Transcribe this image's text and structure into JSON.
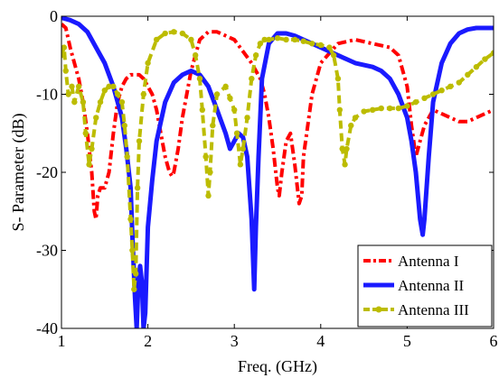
{
  "chart_data": {
    "type": "line",
    "title": "",
    "xlabel": "Freq. (GHz)",
    "ylabel": "S- Parameter (dB)",
    "xlim": [
      1,
      6
    ],
    "ylim": [
      -40,
      0
    ],
    "xticks": [
      1,
      2,
      3,
      4,
      5,
      6
    ],
    "yticks": [
      0,
      -10,
      -20,
      -30,
      -40
    ],
    "xtick_labels": [
      "1",
      "2",
      "3",
      "4",
      "5",
      "6"
    ],
    "ytick_labels": [
      "0",
      "-10",
      "-20",
      "-30",
      "-40"
    ],
    "grid": false,
    "legend_position": "bottom-right",
    "series": [
      {
        "name": "Antenna I",
        "color": "#ff0000",
        "style": "dash-dot",
        "points": [
          [
            1.0,
            -1
          ],
          [
            1.05,
            -1.5
          ],
          [
            1.1,
            -4
          ],
          [
            1.15,
            -6
          ],
          [
            1.2,
            -8
          ],
          [
            1.25,
            -11
          ],
          [
            1.3,
            -15
          ],
          [
            1.35,
            -20
          ],
          [
            1.38,
            -25
          ],
          [
            1.4,
            -26
          ],
          [
            1.42,
            -23
          ],
          [
            1.45,
            -22
          ],
          [
            1.5,
            -22
          ],
          [
            1.55,
            -20
          ],
          [
            1.6,
            -15
          ],
          [
            1.65,
            -11
          ],
          [
            1.7,
            -9
          ],
          [
            1.75,
            -8
          ],
          [
            1.8,
            -7.5
          ],
          [
            1.85,
            -7.5
          ],
          [
            1.9,
            -7.5
          ],
          [
            1.95,
            -8
          ],
          [
            2.0,
            -9
          ],
          [
            2.05,
            -10
          ],
          [
            2.1,
            -12
          ],
          [
            2.15,
            -15
          ],
          [
            2.2,
            -18
          ],
          [
            2.25,
            -20
          ],
          [
            2.28,
            -20.5
          ],
          [
            2.3,
            -20
          ],
          [
            2.35,
            -17
          ],
          [
            2.4,
            -13
          ],
          [
            2.5,
            -7
          ],
          [
            2.6,
            -3
          ],
          [
            2.7,
            -2
          ],
          [
            2.8,
            -2
          ],
          [
            2.9,
            -2.5
          ],
          [
            3.0,
            -3
          ],
          [
            3.1,
            -4.5
          ],
          [
            3.2,
            -6
          ],
          [
            3.3,
            -8
          ],
          [
            3.35,
            -10
          ],
          [
            3.4,
            -13
          ],
          [
            3.45,
            -17
          ],
          [
            3.5,
            -22
          ],
          [
            3.52,
            -23
          ],
          [
            3.55,
            -20
          ],
          [
            3.6,
            -16
          ],
          [
            3.65,
            -15
          ],
          [
            3.7,
            -19
          ],
          [
            3.75,
            -24
          ],
          [
            3.78,
            -23
          ],
          [
            3.8,
            -18
          ],
          [
            3.9,
            -10
          ],
          [
            4.0,
            -6
          ],
          [
            4.2,
            -3.5
          ],
          [
            4.4,
            -3
          ],
          [
            4.6,
            -3.5
          ],
          [
            4.8,
            -4
          ],
          [
            4.9,
            -5
          ],
          [
            5.0,
            -9
          ],
          [
            5.05,
            -14
          ],
          [
            5.1,
            -18
          ],
          [
            5.15,
            -16
          ],
          [
            5.2,
            -14
          ],
          [
            5.3,
            -12
          ],
          [
            5.4,
            -12.5
          ],
          [
            5.5,
            -13
          ],
          [
            5.6,
            -13.5
          ],
          [
            5.7,
            -13.5
          ],
          [
            5.8,
            -13
          ],
          [
            5.9,
            -12.5
          ],
          [
            6.0,
            -12
          ]
        ]
      },
      {
        "name": "Antenna II",
        "color": "#1a1aff",
        "style": "solid",
        "points": [
          [
            1.0,
            -0.2
          ],
          [
            1.1,
            -0.5
          ],
          [
            1.2,
            -1
          ],
          [
            1.3,
            -2
          ],
          [
            1.4,
            -4
          ],
          [
            1.5,
            -6
          ],
          [
            1.6,
            -9
          ],
          [
            1.7,
            -13
          ],
          [
            1.75,
            -17
          ],
          [
            1.8,
            -22
          ],
          [
            1.82,
            -28
          ],
          [
            1.85,
            -36
          ],
          [
            1.87,
            -40
          ],
          [
            1.89,
            -34
          ],
          [
            1.91,
            -32
          ],
          [
            1.93,
            -34
          ],
          [
            1.95,
            -40
          ],
          [
            1.97,
            -38
          ],
          [
            2.0,
            -27
          ],
          [
            2.05,
            -21
          ],
          [
            2.1,
            -16
          ],
          [
            2.2,
            -11
          ],
          [
            2.3,
            -8.5
          ],
          [
            2.4,
            -7.5
          ],
          [
            2.5,
            -7
          ],
          [
            2.6,
            -7.5
          ],
          [
            2.7,
            -9
          ],
          [
            2.8,
            -12
          ],
          [
            2.9,
            -15
          ],
          [
            2.95,
            -17
          ],
          [
            3.0,
            -16
          ],
          [
            3.05,
            -15
          ],
          [
            3.1,
            -15.5
          ],
          [
            3.15,
            -18
          ],
          [
            3.2,
            -26
          ],
          [
            3.23,
            -35
          ],
          [
            3.25,
            -27
          ],
          [
            3.28,
            -18
          ],
          [
            3.32,
            -8
          ],
          [
            3.4,
            -3.5
          ],
          [
            3.5,
            -2.2
          ],
          [
            3.6,
            -2.2
          ],
          [
            3.7,
            -2.5
          ],
          [
            3.8,
            -3
          ],
          [
            4.0,
            -4
          ],
          [
            4.2,
            -5
          ],
          [
            4.4,
            -6
          ],
          [
            4.6,
            -6.5
          ],
          [
            4.7,
            -7
          ],
          [
            4.8,
            -8
          ],
          [
            4.9,
            -10
          ],
          [
            5.0,
            -13
          ],
          [
            5.05,
            -16
          ],
          [
            5.1,
            -20
          ],
          [
            5.15,
            -26
          ],
          [
            5.18,
            -28
          ],
          [
            5.2,
            -26
          ],
          [
            5.25,
            -18
          ],
          [
            5.3,
            -11
          ],
          [
            5.4,
            -6
          ],
          [
            5.5,
            -3.5
          ],
          [
            5.6,
            -2.2
          ],
          [
            5.7,
            -1.7
          ],
          [
            5.8,
            -1.5
          ],
          [
            5.9,
            -1.5
          ],
          [
            6.0,
            -1.5
          ]
        ]
      },
      {
        "name": "Antenna III",
        "color": "#bcbc00",
        "style": "dashed-dot-marker",
        "points": [
          [
            1.0,
            -5
          ],
          [
            1.03,
            -4
          ],
          [
            1.05,
            -7
          ],
          [
            1.08,
            -10
          ],
          [
            1.12,
            -9
          ],
          [
            1.15,
            -11
          ],
          [
            1.2,
            -9
          ],
          [
            1.25,
            -11
          ],
          [
            1.28,
            -15
          ],
          [
            1.32,
            -19
          ],
          [
            1.35,
            -17
          ],
          [
            1.4,
            -13
          ],
          [
            1.45,
            -11
          ],
          [
            1.5,
            -9.5
          ],
          [
            1.55,
            -9
          ],
          [
            1.6,
            -9
          ],
          [
            1.65,
            -10
          ],
          [
            1.7,
            -11
          ],
          [
            1.73,
            -14
          ],
          [
            1.76,
            -18
          ],
          [
            1.8,
            -26
          ],
          [
            1.82,
            -30
          ],
          [
            1.84,
            -35
          ],
          [
            1.86,
            -33
          ],
          [
            1.88,
            -22
          ],
          [
            1.9,
            -16
          ],
          [
            1.95,
            -10
          ],
          [
            2.0,
            -6
          ],
          [
            2.1,
            -3
          ],
          [
            2.2,
            -2.2
          ],
          [
            2.3,
            -2
          ],
          [
            2.4,
            -2.2
          ],
          [
            2.5,
            -3
          ],
          [
            2.55,
            -5
          ],
          [
            2.6,
            -8
          ],
          [
            2.63,
            -12
          ],
          [
            2.67,
            -18
          ],
          [
            2.7,
            -23
          ],
          [
            2.72,
            -20
          ],
          [
            2.75,
            -14
          ],
          [
            2.8,
            -10
          ],
          [
            2.9,
            -9
          ],
          [
            2.95,
            -10.5
          ],
          [
            3.0,
            -12
          ],
          [
            3.03,
            -15
          ],
          [
            3.07,
            -19
          ],
          [
            3.1,
            -17
          ],
          [
            3.15,
            -13
          ],
          [
            3.2,
            -8
          ],
          [
            3.25,
            -5
          ],
          [
            3.3,
            -3.5
          ],
          [
            3.35,
            -3
          ],
          [
            3.4,
            -3
          ],
          [
            3.5,
            -2.8
          ],
          [
            3.6,
            -3
          ],
          [
            3.7,
            -3
          ],
          [
            3.8,
            -3.2
          ],
          [
            3.9,
            -3.5
          ],
          [
            4.0,
            -3.7
          ],
          [
            4.1,
            -4
          ],
          [
            4.15,
            -5
          ],
          [
            4.2,
            -8
          ],
          [
            4.22,
            -12
          ],
          [
            4.25,
            -17
          ],
          [
            4.28,
            -19
          ],
          [
            4.3,
            -17
          ],
          [
            4.35,
            -14
          ],
          [
            4.4,
            -13
          ],
          [
            4.5,
            -12.2
          ],
          [
            4.6,
            -12
          ],
          [
            4.7,
            -11.8
          ],
          [
            4.8,
            -11.8
          ],
          [
            4.9,
            -11.8
          ],
          [
            5.0,
            -11.5
          ],
          [
            5.1,
            -11
          ],
          [
            5.2,
            -10.5
          ],
          [
            5.3,
            -10
          ],
          [
            5.4,
            -9.5
          ],
          [
            5.5,
            -9
          ],
          [
            5.6,
            -8.5
          ],
          [
            5.7,
            -7.5
          ],
          [
            5.8,
            -6.5
          ],
          [
            5.9,
            -5.5
          ],
          [
            6.0,
            -4.7
          ]
        ]
      }
    ]
  }
}
